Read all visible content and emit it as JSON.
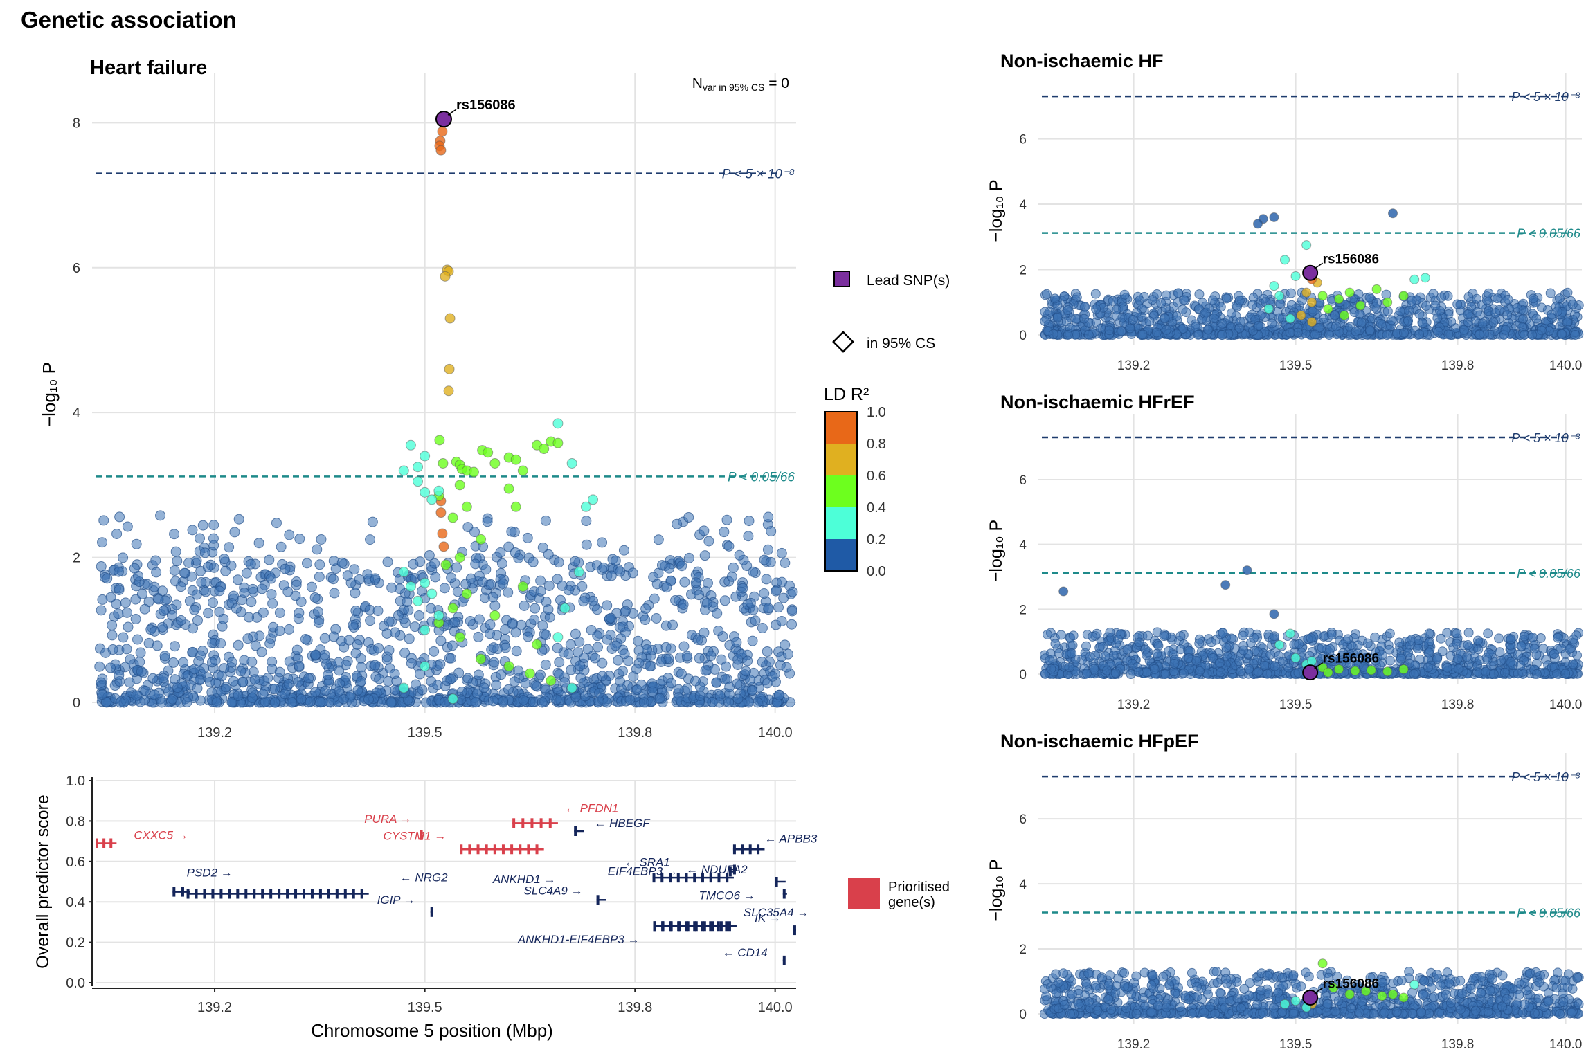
{
  "figure_title": "Genetic association",
  "chart_data": [
    {
      "type": "scatter",
      "id": "hf",
      "title": "Heart failure",
      "ylabel": "−log₁₀ P",
      "ylim": [
        0,
        8.5
      ],
      "xlim": [
        139.03,
        140.03
      ],
      "xticks": [
        139.2,
        139.5,
        139.8,
        140.0
      ],
      "yticks": [
        0,
        2,
        4,
        6,
        8
      ],
      "grid": true,
      "nvar_label": "N",
      "nvar_sub": "var in 95% CS",
      "nvar_value": "= 0",
      "thresholds": [
        {
          "value": 7.3,
          "label": "P < 5 × 10⁻⁸",
          "color": "#1f3c6e"
        },
        {
          "value": 3.12,
          "label": "P < 0.05/66",
          "color": "#1e8a8a"
        }
      ],
      "lead": {
        "x": 139.527,
        "y": 8.05,
        "label": "rs156086"
      },
      "points": [
        [
          139.525,
          7.88,
          0.92
        ],
        [
          139.522,
          7.75,
          0.95
        ],
        [
          139.521,
          7.68,
          0.95
        ],
        [
          139.523,
          7.62,
          0.92
        ],
        [
          139.532,
          5.97,
          0.7
        ],
        [
          139.534,
          5.95,
          0.68
        ],
        [
          139.529,
          5.88,
          0.7
        ],
        [
          139.536,
          5.3,
          0.68
        ],
        [
          139.535,
          4.6,
          0.65
        ],
        [
          139.534,
          4.3,
          0.65
        ],
        [
          139.523,
          2.62,
          0.9
        ],
        [
          139.525,
          2.33,
          0.88
        ],
        [
          139.523,
          2.78,
          0.86
        ],
        [
          139.527,
          2.15,
          0.8
        ],
        [
          139.521,
          3.62,
          0.45
        ],
        [
          139.526,
          3.3,
          0.45
        ],
        [
          139.545,
          3.32,
          0.42
        ],
        [
          139.55,
          3.28,
          0.42
        ],
        [
          139.553,
          3.22,
          0.4
        ],
        [
          139.56,
          3.2,
          0.42
        ],
        [
          139.57,
          3.18,
          0.4
        ],
        [
          139.582,
          3.48,
          0.42
        ],
        [
          139.59,
          3.45,
          0.44
        ],
        [
          139.6,
          3.3,
          0.42
        ],
        [
          139.62,
          3.38,
          0.42
        ],
        [
          139.63,
          3.35,
          0.42
        ],
        [
          139.64,
          3.2,
          0.4
        ],
        [
          139.66,
          3.55,
          0.42
        ],
        [
          139.67,
          3.5,
          0.43
        ],
        [
          139.68,
          3.6,
          0.44
        ],
        [
          139.69,
          3.58,
          0.42
        ],
        [
          139.55,
          3.0,
          0.41
        ],
        [
          139.56,
          2.7,
          0.41
        ],
        [
          139.54,
          2.55,
          0.41
        ],
        [
          139.52,
          2.85,
          0.41
        ],
        [
          139.58,
          2.25,
          0.41
        ],
        [
          139.62,
          2.95,
          0.41
        ],
        [
          139.63,
          2.7,
          0.41
        ],
        [
          139.55,
          2.0,
          0.41
        ],
        [
          139.53,
          1.9,
          0.41
        ],
        [
          139.56,
          1.5,
          0.41
        ],
        [
          139.54,
          1.3,
          0.41
        ],
        [
          139.52,
          1.1,
          0.41
        ],
        [
          139.55,
          0.9,
          0.41
        ],
        [
          139.58,
          0.6,
          0.41
        ],
        [
          139.62,
          0.5,
          0.41
        ],
        [
          139.65,
          0.4,
          0.41
        ],
        [
          139.68,
          0.3,
          0.41
        ],
        [
          139.6,
          1.2,
          0.41
        ],
        [
          139.64,
          1.6,
          0.41
        ],
        [
          139.66,
          0.8,
          0.41
        ],
        [
          139.49,
          3.25,
          0.3
        ],
        [
          139.47,
          3.2,
          0.3
        ],
        [
          139.48,
          3.55,
          0.3
        ],
        [
          139.5,
          3.4,
          0.3
        ],
        [
          139.49,
          3.05,
          0.3
        ],
        [
          139.5,
          2.9,
          0.3
        ],
        [
          139.51,
          2.8,
          0.3
        ],
        [
          139.52,
          2.92,
          0.3
        ],
        [
          139.47,
          1.8,
          0.3
        ],
        [
          139.48,
          1.6,
          0.3
        ],
        [
          139.49,
          1.4,
          0.3
        ],
        [
          139.5,
          1.65,
          0.3
        ],
        [
          139.51,
          1.5,
          0.3
        ],
        [
          139.52,
          1.2,
          0.3
        ],
        [
          139.5,
          1.0,
          0.3
        ],
        [
          139.47,
          0.2,
          0.3
        ],
        [
          139.5,
          0.5,
          0.3
        ],
        [
          139.54,
          0.05,
          0.3
        ],
        [
          139.69,
          3.85,
          0.25
        ],
        [
          139.71,
          3.3,
          0.25
        ],
        [
          139.73,
          2.7,
          0.25
        ],
        [
          139.74,
          2.8,
          0.25
        ],
        [
          139.72,
          1.8,
          0.25
        ],
        [
          139.7,
          1.3,
          0.25
        ],
        [
          139.69,
          0.9,
          0.25
        ],
        [
          139.71,
          0.2,
          0.25
        ]
      ],
      "legend": {
        "lead_label": "Lead SNP(s)",
        "cs_label": "in 95% CS",
        "ld_title": "LD R²",
        "ld_ticks": [
          "1.0",
          "0.8",
          "0.6",
          "0.4",
          "0.2",
          "0.0"
        ],
        "ld_colors": [
          "#1f5aa6",
          "#4dffd8",
          "#6dff1e",
          "#e0b020",
          "#e86818"
        ]
      }
    },
    {
      "type": "gene-track",
      "id": "genes",
      "xlabel": "Chromosome 5 position (Mbp)",
      "ylabel": "Overall predictor score",
      "ylim": [
        0,
        1.0
      ],
      "yticks": [
        "0.0",
        "0.2",
        "0.4",
        "0.6",
        "0.8",
        "1.0"
      ],
      "xticks": [
        139.2,
        139.5,
        139.8,
        140.0
      ],
      "legend_label": "Prioritised gene(s)",
      "genes": [
        {
          "name": "CXXC5 →",
          "start": 139.03,
          "end": 139.06,
          "score": 0.69,
          "prioritised": true
        },
        {
          "name": "PURA →",
          "start": 139.493,
          "end": 139.497,
          "score": 0.73,
          "prioritised": true
        },
        {
          "name": "CYSTM1 →",
          "start": 139.55,
          "end": 139.67,
          "score": 0.66,
          "prioritised": true
        },
        {
          "name": "← PFDN1",
          "start": 139.625,
          "end": 139.69,
          "score": 0.79,
          "prioritised": true
        },
        {
          "name": "← HBEGF",
          "start": 139.713,
          "end": 139.727,
          "score": 0.75,
          "prioritised": false
        },
        {
          "name": "ANKHD1 →",
          "start": 139.825,
          "end": 139.941,
          "score": 0.52,
          "prioritised": false
        },
        {
          "name": "← SRA1",
          "start": 139.934,
          "end": 139.941,
          "score": 0.55,
          "prioritised": false
        },
        {
          "name": "← APBB3",
          "start": 139.94,
          "end": 139.985,
          "score": 0.66,
          "prioritised": false
        },
        {
          "name": "EIF4EBP3 →",
          "start": 139.94,
          "end": 139.945,
          "score": 0.56,
          "prioritised": false
        },
        {
          "name": "← NDUFA2",
          "start": 140.0,
          "end": 140.015,
          "score": 0.5,
          "prioritised": false
        },
        {
          "name": "TMCO6 →",
          "start": 140.011,
          "end": 140.017,
          "score": 0.44,
          "prioritised": false
        },
        {
          "name": "PSD2 →",
          "start": 139.14,
          "end": 139.165,
          "score": 0.45,
          "prioritised": false
        },
        {
          "name": "← NRG2",
          "start": 139.16,
          "end": 139.42,
          "score": 0.44,
          "prioritised": false
        },
        {
          "name": "IGIP →",
          "start": 139.508,
          "end": 139.512,
          "score": 0.35,
          "prioritised": false
        },
        {
          "name": "SLC4A9 →",
          "start": 139.745,
          "end": 139.759,
          "score": 0.41,
          "prioritised": false
        },
        {
          "name": "SLC35A4 →",
          "start": 139.826,
          "end": 139.94,
          "score": 0.28,
          "prioritised": false
        },
        {
          "name": "ANKHD1-EIF4EBP3 →",
          "start": 139.826,
          "end": 139.945,
          "score": 0.28,
          "prioritised": false
        },
        {
          "name": "IK →",
          "start": 140.026,
          "end": 140.03,
          "score": 0.26,
          "prioritised": false
        },
        {
          "name": "← CD14",
          "start": 140.011,
          "end": 140.013,
          "score": 0.11,
          "prioritised": false
        }
      ]
    },
    {
      "type": "scatter",
      "id": "nihf",
      "title": "Non-ischaemic HF",
      "ylabel": "−log₁₀ P",
      "ylim": [
        0,
        7.6
      ],
      "xlim": [
        139.03,
        140.03
      ],
      "xticks": [
        139.2,
        139.5,
        139.8,
        140.0
      ],
      "yticks": [
        0,
        2,
        4,
        6
      ],
      "thresholds": [
        {
          "value": 7.3,
          "label": "P < 5 × 10⁻⁸",
          "color": "#1f3c6e"
        },
        {
          "value": 3.12,
          "label": "P < 0.05/66",
          "color": "#1e8a8a"
        }
      ],
      "lead": {
        "x": 139.527,
        "y": 1.9,
        "label": "rs156086"
      },
      "points": [
        [
          139.68,
          3.72,
          0.05
        ],
        [
          139.44,
          3.55,
          0.05
        ],
        [
          139.46,
          3.6,
          0.05
        ],
        [
          139.43,
          3.4,
          0.05
        ],
        [
          139.52,
          2.75,
          0.3
        ],
        [
          139.48,
          2.3,
          0.3
        ],
        [
          139.5,
          1.8,
          0.3
        ],
        [
          139.47,
          1.2,
          0.3
        ],
        [
          139.52,
          1.3,
          0.7
        ],
        [
          139.53,
          1.0,
          0.7
        ],
        [
          139.54,
          1.6,
          0.65
        ],
        [
          139.53,
          1.7,
          0.9
        ],
        [
          139.55,
          1.2,
          0.45
        ],
        [
          139.58,
          1.1,
          0.45
        ],
        [
          139.6,
          1.3,
          0.42
        ],
        [
          139.62,
          0.9,
          0.42
        ],
        [
          139.65,
          1.4,
          0.42
        ],
        [
          139.67,
          1.0,
          0.42
        ],
        [
          139.7,
          1.2,
          0.42
        ],
        [
          139.72,
          1.7,
          0.3
        ],
        [
          139.74,
          1.75,
          0.3
        ],
        [
          139.46,
          1.5,
          0.3
        ],
        [
          139.45,
          0.8,
          0.3
        ],
        [
          139.49,
          0.5,
          0.3
        ],
        [
          139.51,
          0.6,
          0.7
        ],
        [
          139.53,
          0.4,
          0.65
        ],
        [
          139.56,
          0.8,
          0.45
        ],
        [
          139.59,
          0.6,
          0.42
        ]
      ]
    },
    {
      "type": "scatter",
      "id": "nihfref",
      "title": "Non-ischaemic HFrEF",
      "ylabel": "−log₁₀ P",
      "ylim": [
        0,
        7.6
      ],
      "xlim": [
        139.03,
        140.03
      ],
      "xticks": [
        139.2,
        139.5,
        139.8,
        140.0
      ],
      "yticks": [
        0,
        2,
        4,
        6
      ],
      "thresholds": [
        {
          "value": 7.3,
          "label": "P < 5 × 10⁻⁸",
          "color": "#1f3c6e"
        },
        {
          "value": 3.12,
          "label": "P < 0.05/66",
          "color": "#1e8a8a"
        }
      ],
      "lead": {
        "x": 139.527,
        "y": 0.05,
        "label": "rs156086"
      },
      "points": [
        [
          139.41,
          3.2,
          0.05
        ],
        [
          139.37,
          2.75,
          0.05
        ],
        [
          139.07,
          2.55,
          0.05
        ],
        [
          139.46,
          1.85,
          0.05
        ],
        [
          139.49,
          1.25,
          0.3
        ],
        [
          139.47,
          0.9,
          0.3
        ],
        [
          139.5,
          0.5,
          0.3
        ],
        [
          139.55,
          0.2,
          0.42
        ],
        [
          139.58,
          0.15,
          0.42
        ],
        [
          139.61,
          0.1,
          0.42
        ],
        [
          139.64,
          0.12,
          0.42
        ],
        [
          139.67,
          0.08,
          0.42
        ],
        [
          139.7,
          0.15,
          0.42
        ],
        [
          139.52,
          0.3,
          0.3
        ],
        [
          139.53,
          0.4,
          0.3
        ],
        [
          139.56,
          0.05,
          0.42
        ]
      ]
    },
    {
      "type": "scatter",
      "id": "nihfpef",
      "title": "Non-ischaemic HFpEF",
      "ylabel": "−log₁₀ P",
      "ylim": [
        0,
        7.6
      ],
      "xlim": [
        139.03,
        140.03
      ],
      "xticks": [
        139.2,
        139.5,
        139.8,
        140.0
      ],
      "yticks": [
        0,
        2,
        4,
        6
      ],
      "thresholds": [
        {
          "value": 7.3,
          "label": "P < 5 × 10⁻⁸",
          "color": "#1f3c6e"
        },
        {
          "value": 3.12,
          "label": "P < 0.05/66",
          "color": "#1e8a8a"
        }
      ],
      "lead": {
        "x": 139.527,
        "y": 0.5,
        "label": "rs156086"
      },
      "points": [
        [
          139.55,
          1.55,
          0.45
        ],
        [
          139.57,
          0.8,
          0.45
        ],
        [
          139.6,
          0.6,
          0.42
        ],
        [
          139.63,
          0.7,
          0.42
        ],
        [
          139.66,
          0.55,
          0.42
        ],
        [
          139.68,
          0.6,
          0.42
        ],
        [
          139.7,
          0.5,
          0.42
        ],
        [
          139.72,
          0.9,
          0.3
        ],
        [
          139.5,
          0.4,
          0.3
        ],
        [
          139.48,
          0.3,
          0.3
        ],
        [
          139.53,
          0.3,
          0.65
        ],
        [
          139.52,
          0.2,
          0.3
        ]
      ]
    }
  ]
}
